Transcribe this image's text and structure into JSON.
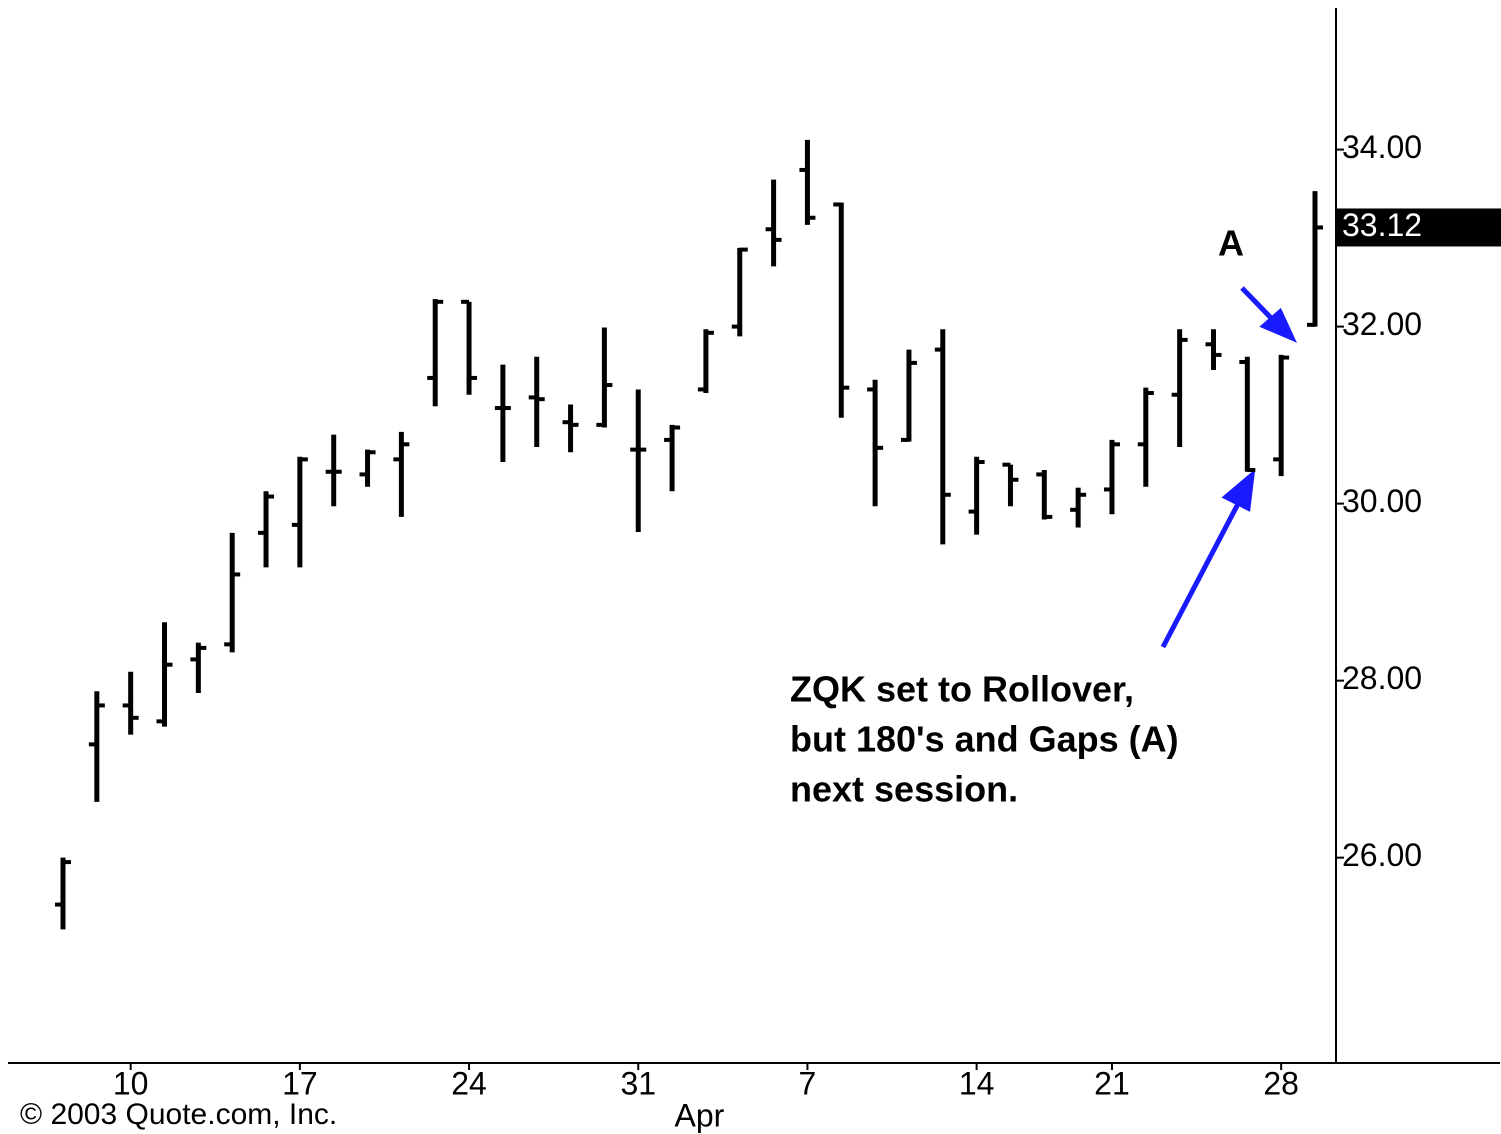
{
  "chart_data": {
    "type": "ohlc",
    "categories": [
      null,
      null,
      "10",
      null,
      null,
      null,
      null,
      "17",
      null,
      null,
      null,
      null,
      "24",
      null,
      null,
      null,
      null,
      "31",
      null,
      null,
      null,
      null,
      "7",
      null,
      null,
      null,
      null,
      "14",
      null,
      null,
      null,
      "21",
      null,
      null,
      null,
      null,
      "28",
      null
    ],
    "month_label": "Apr",
    "open": [
      25.47,
      27.28,
      27.72,
      27.54,
      28.24,
      28.41,
      29.67,
      29.76,
      30.36,
      30.33,
      30.5,
      31.42,
      32.28,
      31.08,
      31.2,
      30.92,
      30.89,
      30.61,
      30.72,
      31.29,
      32.0,
      33.1,
      33.77,
      33.38,
      31.29,
      30.72,
      31.74,
      29.91,
      30.44,
      30.33,
      29.93,
      30.16,
      30.67,
      31.23,
      31.8,
      31.6,
      30.5,
      32.02
    ],
    "high": [
      26.0,
      27.88,
      28.1,
      28.66,
      28.43,
      29.67,
      30.14,
      30.53,
      30.78,
      30.61,
      30.81,
      32.31,
      32.28,
      31.57,
      31.66,
      31.12,
      31.99,
      31.29,
      30.89,
      31.97,
      32.89,
      33.66,
      34.11,
      33.4,
      31.4,
      31.74,
      31.97,
      30.53,
      30.44,
      30.38,
      30.18,
      30.72,
      31.31,
      31.97,
      31.97,
      31.66,
      31.68,
      33.53
    ],
    "low": [
      25.19,
      26.63,
      27.39,
      27.48,
      27.86,
      28.32,
      29.28,
      29.28,
      29.97,
      30.19,
      29.85,
      31.1,
      31.23,
      30.47,
      30.64,
      30.58,
      30.86,
      29.68,
      30.14,
      31.25,
      31.89,
      32.68,
      33.15,
      30.97,
      29.97,
      30.7,
      29.54,
      29.65,
      29.97,
      29.82,
      29.73,
      29.88,
      30.19,
      30.64,
      31.51,
      30.36,
      30.31,
      32.0
    ],
    "close": [
      25.95,
      27.72,
      27.58,
      28.18,
      28.37,
      29.2,
      30.08,
      30.5,
      30.36,
      30.58,
      30.67,
      32.28,
      31.42,
      31.08,
      31.18,
      30.89,
      31.34,
      30.61,
      30.86,
      31.93,
      32.87,
      32.98,
      33.23,
      31.31,
      30.63,
      31.59,
      30.1,
      30.47,
      30.27,
      29.85,
      30.1,
      30.67,
      31.25,
      31.85,
      31.68,
      30.38,
      31.65,
      33.12
    ],
    "color": "#000000",
    "last_price": {
      "value": 33.12,
      "label": "33.12"
    },
    "ylim": [
      23.68,
      35.69
    ],
    "yticks": [
      {
        "value": 26,
        "label": "26.00"
      },
      {
        "value": 28,
        "label": "28.00"
      },
      {
        "value": 30,
        "label": "30.00"
      },
      {
        "value": 32,
        "label": "32.00"
      },
      {
        "value": 34,
        "label": "34.00"
      }
    ],
    "annotations": {
      "marker": "A",
      "note": [
        "ZQK set to Rollover,",
        "but 180's and Gaps (A)",
        "next session."
      ]
    },
    "copyright": "© 2003 Quote.com, Inc."
  }
}
